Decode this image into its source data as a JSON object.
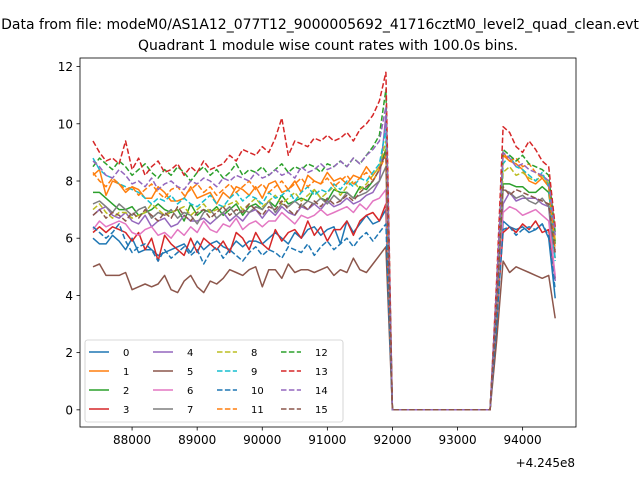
{
  "chart_data": {
    "type": "line",
    "suptitle": "Data from file: modeM0/AS1A12_077T12_9000005692_41716cztM0_level2_quad_clean.evt",
    "title": "Quadrant 1 module wise count rates with 100.0s bins.",
    "xlabel": "",
    "ylabel": "",
    "x_offset_label": "+4.245e8",
    "xlim": [
      87200,
      94820
    ],
    "ylim": [
      -0.6,
      12.3
    ],
    "xticks": [
      88000,
      89000,
      90000,
      91000,
      92000,
      93000,
      94000
    ],
    "xtick_labels": [
      "88000",
      "89000",
      "90000",
      "91000",
      "92000",
      "93000",
      "94000"
    ],
    "yticks": [
      0,
      2,
      4,
      6,
      8,
      10,
      12
    ],
    "ytick_labels": [
      "0",
      "2",
      "4",
      "6",
      "8",
      "10",
      "12"
    ],
    "legend_position": "lower-left",
    "segments": [
      {
        "x_start": 87400,
        "x_end": 91900,
        "zero_from": 92000,
        "zero_to": 93500
      },
      {
        "x_start": 93600,
        "x_end": 94500
      }
    ],
    "series": [
      {
        "name": "0",
        "color": "#1f77b4",
        "dash": "solid",
        "values1": [
          6.0,
          5.8,
          5.8,
          6.1,
          5.9,
          5.6,
          6.0,
          5.5,
          5.6,
          5.6,
          5.4,
          5.5,
          5.6,
          5.7,
          5.8,
          5.5,
          5.9,
          5.6,
          5.8,
          5.9,
          5.7,
          5.6,
          5.9,
          5.7,
          5.9,
          5.9,
          5.8,
          6.0,
          6.2,
          6.0,
          5.8,
          6.2,
          6.0,
          6.3,
          6.4,
          6.1,
          6.3,
          6.4,
          5.8,
          6.6,
          6.2,
          6.5,
          6.8,
          6.5,
          6.6,
          7.0
        ],
        "values2": [
          3.0,
          6.6,
          6.4,
          6.3,
          6.4,
          6.2,
          6.3,
          6.5,
          6.0,
          3.9
        ]
      },
      {
        "name": "1",
        "color": "#ff7f0e",
        "dash": "solid",
        "values1": [
          8.2,
          8.4,
          7.5,
          8.0,
          7.9,
          7.6,
          7.8,
          7.7,
          7.4,
          7.4,
          7.8,
          7.6,
          7.3,
          7.3,
          7.4,
          7.8,
          7.4,
          7.5,
          7.6,
          7.2,
          7.6,
          7.4,
          7.8,
          7.7,
          7.5,
          7.8,
          7.4,
          7.9,
          8.0,
          7.6,
          7.7,
          8.0,
          7.6,
          8.2,
          8.0,
          7.9,
          8.3,
          8.0,
          8.1,
          7.9,
          8.2,
          8.1,
          8.5,
          8.2,
          8.5,
          9.1
        ],
        "values2": [
          3.7,
          8.9,
          8.7,
          8.6,
          8.4,
          8.0,
          7.9,
          8.1,
          7.8,
          5.9
        ]
      },
      {
        "name": "2",
        "color": "#2ca02c",
        "dash": "solid",
        "values1": [
          7.6,
          7.6,
          7.4,
          7.2,
          7.0,
          7.0,
          7.1,
          6.8,
          6.9,
          7.0,
          7.2,
          7.0,
          6.9,
          7.0,
          6.6,
          7.2,
          6.8,
          7.0,
          6.9,
          7.1,
          6.8,
          7.0,
          7.2,
          6.8,
          7.1,
          7.2,
          7.0,
          7.3,
          7.1,
          7.5,
          7.2,
          7.3,
          7.4,
          7.3,
          7.7,
          7.4,
          7.3,
          7.7,
          7.6,
          7.6,
          7.4,
          7.8,
          7.7,
          8.0,
          8.4,
          9.1
        ],
        "values2": [
          3.3,
          7.9,
          7.9,
          7.8,
          7.8,
          7.6,
          7.6,
          7.8,
          7.6,
          5.8
        ]
      },
      {
        "name": "3",
        "color": "#d62728",
        "dash": "solid",
        "values1": [
          6.2,
          6.4,
          6.2,
          6.4,
          6.3,
          6.2,
          5.9,
          6.2,
          5.6,
          6.0,
          5.2,
          6.1,
          5.8,
          5.6,
          5.4,
          6.0,
          5.5,
          6.0,
          5.8,
          5.6,
          5.9,
          5.5,
          6.2,
          6.0,
          5.6,
          6.2,
          5.8,
          5.6,
          6.3,
          5.9,
          6.2,
          6.3,
          6.0,
          6.6,
          6.1,
          6.4,
          5.9,
          6.3,
          6.3,
          6.6,
          6.1,
          6.6,
          6.8,
          6.9,
          6.6,
          7.2
        ],
        "values2": [
          3.3,
          6.2,
          6.4,
          6.2,
          6.5,
          6.3,
          6.6,
          6.2,
          6.3,
          4.6
        ]
      },
      {
        "name": "4",
        "color": "#9467bd",
        "dash": "solid",
        "values1": [
          6.8,
          7.0,
          7.1,
          6.8,
          6.7,
          6.9,
          6.6,
          6.5,
          6.8,
          6.4,
          6.6,
          6.7,
          6.4,
          6.5,
          6.8,
          6.6,
          6.6,
          6.7,
          6.5,
          6.7,
          6.9,
          6.6,
          6.8,
          6.6,
          6.9,
          7.0,
          6.7,
          7.0,
          6.8,
          7.1,
          6.9,
          6.8,
          7.1,
          7.0,
          7.2,
          7.0,
          7.3,
          7.1,
          7.2,
          7.4,
          7.2,
          7.3,
          7.5,
          7.6,
          8.0,
          10.3
        ],
        "values2": [
          3.5,
          7.2,
          7.6,
          7.3,
          7.4,
          7.4,
          7.4,
          7.2,
          7.1,
          4.5
        ]
      },
      {
        "name": "5",
        "color": "#8c564b",
        "dash": "solid",
        "values1": [
          5.0,
          5.1,
          4.7,
          4.7,
          4.7,
          4.8,
          4.2,
          4.3,
          4.4,
          4.3,
          4.4,
          4.7,
          4.2,
          4.1,
          4.5,
          4.7,
          4.3,
          4.1,
          4.5,
          4.4,
          4.6,
          4.9,
          4.8,
          4.7,
          4.9,
          5.0,
          4.3,
          4.9,
          4.9,
          4.6,
          5.1,
          4.8,
          4.9,
          4.9,
          4.8,
          4.9,
          5.0,
          4.7,
          4.9,
          4.8,
          5.3,
          4.9,
          4.8,
          5.1,
          5.4,
          5.7
        ],
        "values2": [
          2.4,
          5.2,
          4.8,
          5.0,
          4.9,
          4.8,
          4.7,
          4.6,
          4.7,
          3.2
        ]
      },
      {
        "name": "6",
        "color": "#e377c2",
        "dash": "solid",
        "values1": [
          6.3,
          6.6,
          6.4,
          6.5,
          6.6,
          6.5,
          6.2,
          6.1,
          6.3,
          6.4,
          6.1,
          6.2,
          6.0,
          6.3,
          6.1,
          6.4,
          6.2,
          6.6,
          6.3,
          6.2,
          6.5,
          6.4,
          6.7,
          6.3,
          6.5,
          6.6,
          6.4,
          6.6,
          6.6,
          6.9,
          6.7,
          6.5,
          6.8,
          6.7,
          6.8,
          7.0,
          6.8,
          6.9,
          7.0,
          7.1,
          6.9,
          7.2,
          7.0,
          7.3,
          7.4,
          7.7
        ],
        "values2": [
          3.4,
          6.9,
          7.1,
          7.0,
          6.8,
          6.9,
          7.0,
          6.8,
          6.6,
          4.7
        ]
      },
      {
        "name": "7",
        "color": "#7f7f7f",
        "dash": "solid",
        "values1": [
          7.2,
          7.3,
          7.1,
          6.9,
          7.2,
          7.0,
          6.8,
          7.0,
          7.1,
          6.7,
          6.9,
          6.8,
          7.0,
          6.7,
          6.9,
          6.8,
          6.5,
          6.9,
          7.0,
          6.7,
          6.9,
          7.1,
          6.8,
          7.0,
          6.9,
          7.1,
          7.0,
          7.3,
          6.9,
          7.2,
          7.1,
          7.3,
          7.1,
          7.3,
          7.2,
          7.4,
          7.2,
          7.5,
          7.3,
          7.6,
          7.4,
          7.5,
          7.6,
          7.8,
          8.0,
          8.5
        ],
        "values2": [
          3.6,
          7.7,
          7.6,
          7.4,
          7.5,
          7.3,
          7.2,
          7.4,
          7.1,
          5.3
        ]
      },
      {
        "name": "8",
        "color": "#bcbd22",
        "dash": "dashed",
        "values1": [
          7.0,
          7.2,
          6.9,
          6.7,
          6.9,
          6.9,
          6.7,
          6.8,
          6.9,
          7.2,
          7.0,
          6.8,
          6.9,
          7.0,
          7.1,
          6.8,
          7.0,
          7.2,
          6.9,
          7.0,
          7.1,
          7.2,
          7.3,
          7.0,
          7.2,
          7.4,
          7.1,
          7.3,
          7.5,
          7.2,
          7.4,
          7.6,
          7.3,
          7.5,
          7.7,
          7.4,
          7.6,
          7.8,
          7.5,
          7.8,
          8.0,
          7.7,
          7.9,
          8.2,
          8.5,
          9.4
        ],
        "values2": [
          3.8,
          8.3,
          8.5,
          8.2,
          8.3,
          8.1,
          8.0,
          8.2,
          7.9,
          5.9
        ]
      },
      {
        "name": "9",
        "color": "#17becf",
        "dash": "dashed",
        "values1": [
          8.8,
          8.4,
          8.2,
          8.1,
          7.9,
          7.8,
          7.7,
          7.6,
          7.4,
          7.2,
          7.4,
          7.3,
          7.5,
          7.2,
          7.4,
          7.2,
          7.1,
          7.3,
          7.5,
          7.2,
          7.1,
          7.4,
          7.6,
          7.3,
          7.5,
          7.4,
          7.2,
          7.6,
          7.4,
          7.5,
          7.7,
          7.3,
          7.6,
          7.8,
          7.5,
          7.7,
          7.6,
          7.9,
          7.7,
          8.0,
          7.8,
          8.1,
          8.0,
          8.3,
          8.6,
          9.8
        ],
        "values2": [
          4.0,
          8.6,
          8.9,
          8.5,
          8.4,
          8.2,
          8.0,
          8.3,
          7.8,
          5.2
        ]
      },
      {
        "name": "10",
        "color": "#1f77b4",
        "dash": "dashed",
        "values1": [
          6.4,
          6.2,
          6.0,
          6.2,
          6.5,
          5.9,
          5.5,
          5.7,
          5.8,
          5.6,
          5.2,
          5.6,
          5.3,
          5.5,
          5.7,
          5.4,
          5.6,
          5.1,
          5.5,
          5.7,
          5.3,
          5.6,
          5.4,
          5.2,
          5.5,
          5.7,
          5.4,
          5.6,
          5.5,
          5.3,
          5.7,
          5.6,
          5.5,
          5.8,
          5.4,
          5.7,
          5.9,
          5.6,
          5.8,
          6.0,
          5.7,
          6.0,
          6.2,
          5.9,
          6.2,
          6.5
        ],
        "values2": [
          3.0,
          6.3,
          6.4,
          6.1,
          6.3,
          6.4,
          6.3,
          6.5,
          6.1,
          4.2
        ]
      },
      {
        "name": "11",
        "color": "#ff7f0e",
        "dash": "dashed",
        "values1": [
          8.3,
          8.0,
          7.8,
          8.1,
          7.9,
          7.7,
          7.8,
          7.5,
          7.7,
          7.9,
          7.6,
          7.4,
          7.7,
          7.8,
          7.5,
          7.7,
          7.9,
          7.6,
          7.8,
          7.5,
          7.7,
          7.9,
          7.6,
          7.8,
          8.0,
          7.7,
          7.9,
          7.6,
          7.8,
          8.0,
          7.7,
          7.9,
          8.1,
          7.8,
          8.0,
          7.9,
          8.1,
          7.8,
          8.0,
          8.2,
          7.9,
          8.1,
          8.3,
          8.0,
          8.4,
          8.9
        ],
        "values2": [
          4.0,
          9.0,
          8.7,
          8.8,
          8.5,
          8.6,
          8.3,
          8.1,
          7.8,
          5.6
        ]
      },
      {
        "name": "12",
        "color": "#2ca02c",
        "dash": "dashed",
        "values1": [
          8.5,
          8.8,
          8.6,
          8.4,
          8.7,
          8.5,
          8.2,
          8.4,
          8.6,
          8.3,
          8.1,
          8.4,
          8.2,
          8.5,
          8.3,
          8.0,
          8.3,
          8.5,
          8.2,
          8.4,
          8.1,
          8.3,
          8.6,
          8.2,
          8.4,
          8.3,
          8.5,
          8.2,
          8.4,
          8.6,
          8.3,
          8.5,
          8.4,
          8.6,
          8.5,
          8.3,
          8.6,
          8.5,
          8.7,
          8.5,
          8.8,
          8.6,
          8.9,
          9.2,
          9.6,
          11.2
        ],
        "values2": [
          4.3,
          9.1,
          8.9,
          8.7,
          8.9,
          8.6,
          8.5,
          8.4,
          8.2,
          6.2
        ]
      },
      {
        "name": "13",
        "color": "#d62728",
        "dash": "dashed",
        "values1": [
          9.4,
          9.0,
          8.7,
          8.8,
          8.6,
          9.4,
          8.4,
          8.8,
          8.2,
          8.5,
          8.7,
          8.3,
          8.4,
          8.6,
          8.2,
          8.5,
          8.3,
          8.7,
          8.4,
          8.5,
          8.6,
          8.9,
          8.7,
          9.1,
          9.0,
          8.9,
          9.2,
          9.0,
          9.5,
          10.2,
          8.9,
          9.4,
          9.3,
          9.2,
          9.5,
          9.4,
          9.6,
          9.4,
          9.5,
          9.7,
          9.4,
          9.8,
          10.0,
          10.3,
          10.8,
          11.8
        ],
        "values2": [
          4.5,
          9.9,
          9.7,
          9.2,
          9.0,
          9.4,
          9.1,
          8.7,
          8.5,
          6.4
        ]
      },
      {
        "name": "14",
        "color": "#9467bd",
        "dash": "dashed",
        "values1": [
          8.7,
          8.5,
          8.2,
          8.1,
          8.4,
          8.2,
          7.9,
          8.0,
          7.8,
          8.1,
          7.7,
          7.9,
          8.0,
          7.8,
          7.7,
          8.0,
          7.9,
          8.1,
          8.0,
          7.8,
          8.1,
          8.0,
          8.2,
          8.1,
          8.0,
          8.3,
          8.1,
          8.2,
          8.4,
          8.2,
          8.3,
          8.1,
          8.5,
          8.3,
          8.4,
          8.6,
          8.4,
          8.5,
          8.7,
          8.5,
          8.8,
          8.6,
          8.9,
          9.1,
          9.4,
          10.6
        ],
        "values2": [
          4.2,
          9.0,
          8.8,
          8.5,
          8.6,
          8.4,
          8.3,
          8.2,
          8.0,
          6.1
        ]
      },
      {
        "name": "15",
        "color": "#8c564b",
        "dash": "dashed",
        "values1": [
          6.8,
          7.0,
          6.7,
          6.9,
          6.8,
          6.6,
          6.9,
          6.7,
          7.0,
          6.8,
          6.6,
          6.9,
          6.7,
          7.1,
          6.8,
          6.6,
          6.9,
          7.0,
          6.7,
          6.9,
          7.1,
          6.8,
          7.0,
          6.9,
          7.2,
          7.0,
          6.8,
          7.1,
          7.0,
          7.3,
          7.0,
          6.8,
          7.2,
          7.0,
          7.3,
          7.1,
          7.4,
          7.2,
          7.3,
          7.5,
          7.3,
          7.6,
          7.8,
          8.0,
          8.4,
          9.0
        ],
        "values2": [
          3.6,
          7.8,
          7.5,
          7.7,
          7.6,
          7.5,
          7.4,
          7.3,
          7.2,
          5.5
        ]
      }
    ]
  }
}
